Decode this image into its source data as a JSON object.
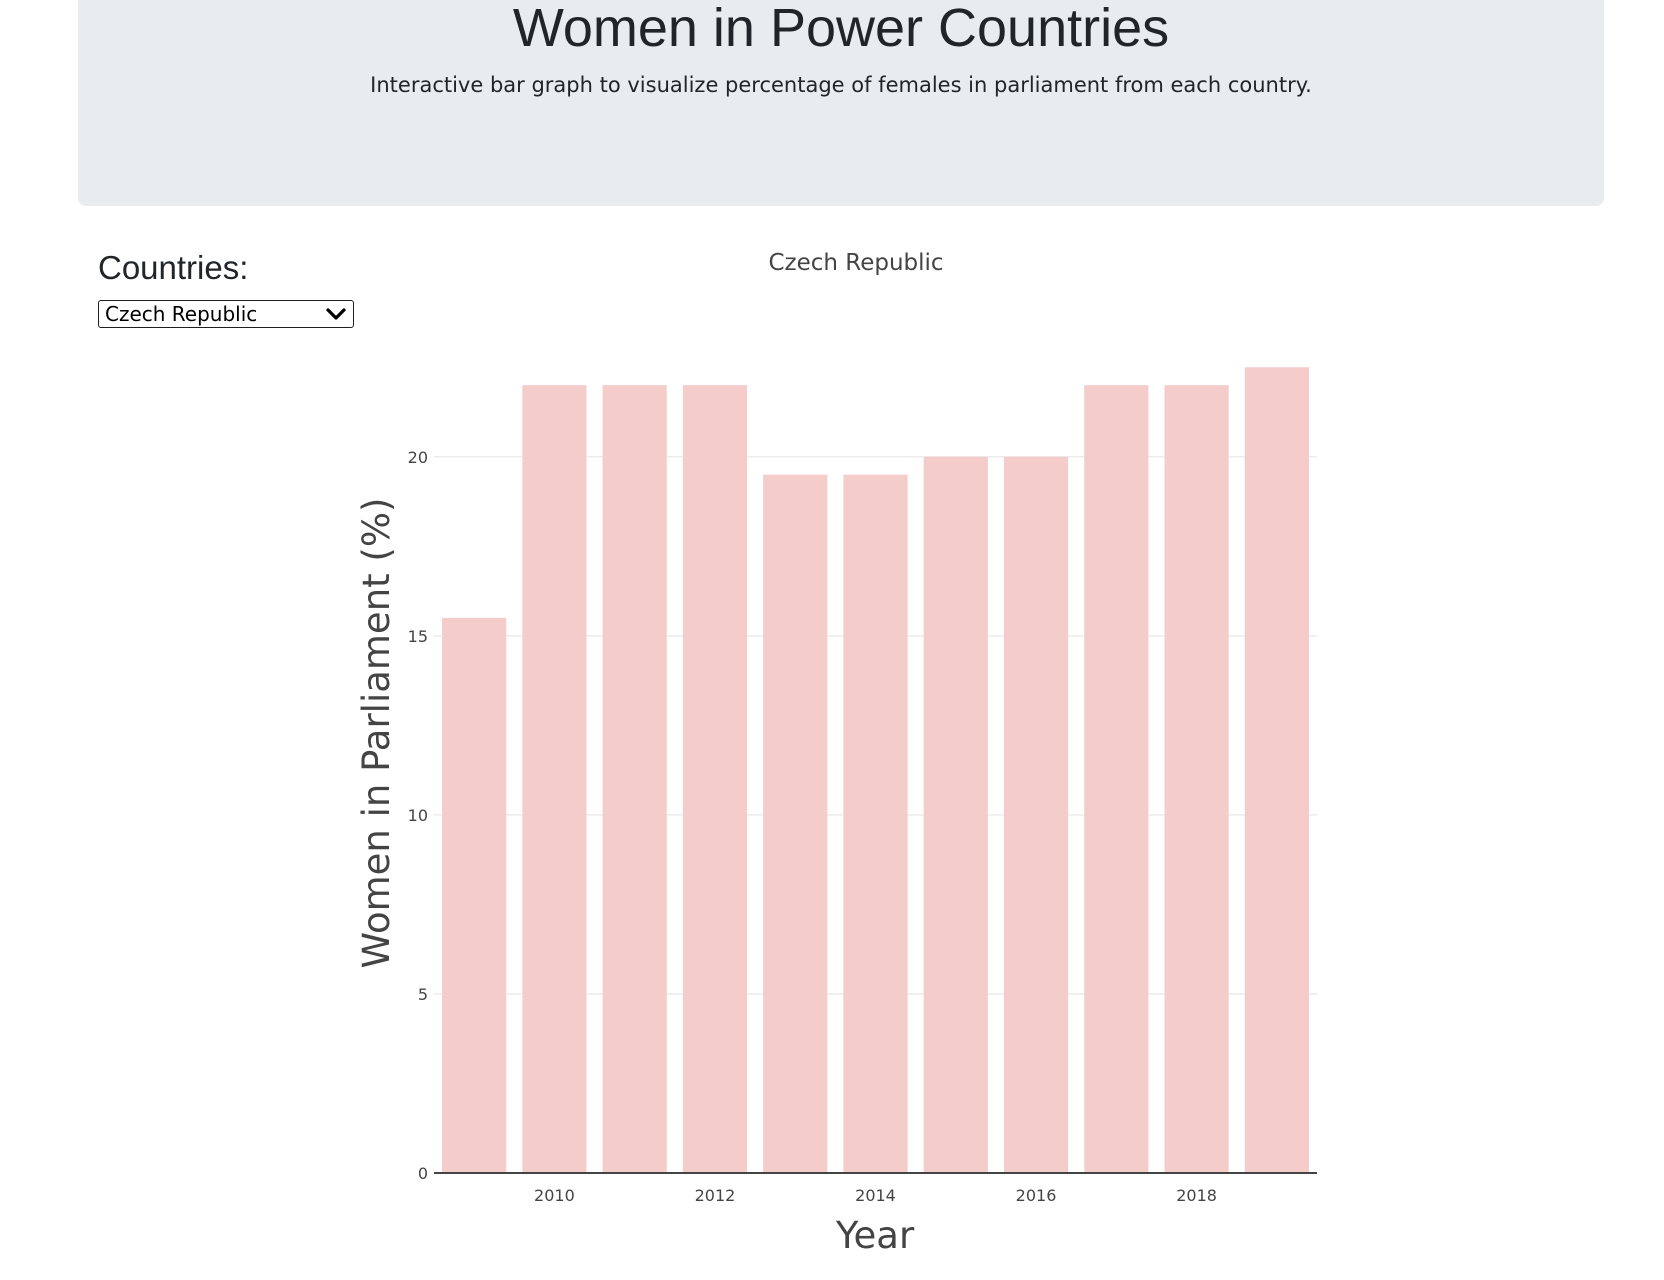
{
  "header": {
    "title": "Women in Power Countries",
    "subtitle": "Interactive bar graph to visualize percentage of females in parliament from each country."
  },
  "filter": {
    "label": "Countries:",
    "selected": "Czech Republic",
    "icon": "chevron-down-icon"
  },
  "colors": {
    "bar": "#f4cdca",
    "jumbotron": "#e9ecef",
    "grid": "#ececec",
    "axis": "#444444"
  },
  "chart_data": {
    "type": "bar",
    "title": "Czech Republic",
    "xlabel": "Year",
    "ylabel": "Women in Parliament (%)",
    "x": [
      2009,
      2010,
      2011,
      2012,
      2013,
      2014,
      2015,
      2016,
      2017,
      2018,
      2019
    ],
    "values": [
      15.5,
      22.0,
      22.0,
      22.0,
      19.5,
      19.5,
      20.0,
      20.0,
      22.0,
      22.0,
      22.5
    ],
    "x_ticks": [
      "2010",
      "2012",
      "2014",
      "2016",
      "2018"
    ],
    "y_ticks": [
      "0",
      "5",
      "10",
      "15",
      "20"
    ],
    "ylim": [
      0,
      23.4
    ],
    "grid": true,
    "legend": false
  }
}
